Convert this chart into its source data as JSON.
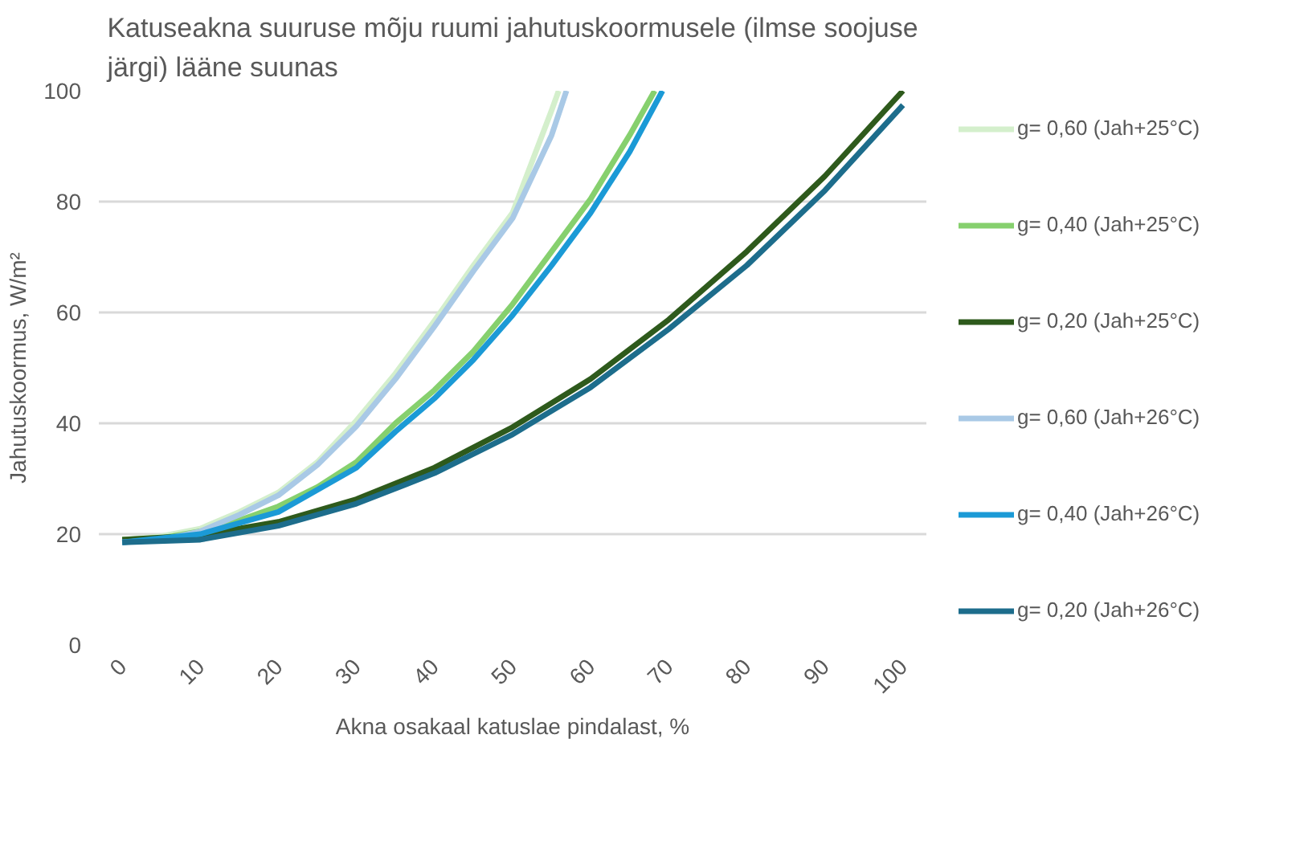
{
  "chart_data": {
    "type": "line",
    "title": "Katuseakna suuruse mõju ruumi jahutuskoormusele (ilmse soojuse järgi) lääne suunas",
    "xlabel": "Akna osakaal katuslae pindalast, %",
    "ylabel": "Jahutuskoormus, W/m²",
    "xlim": [
      -3,
      103
    ],
    "xticks": [
      0,
      10,
      20,
      30,
      40,
      50,
      60,
      70,
      80,
      90,
      100
    ],
    "ylim": [
      0,
      100
    ],
    "yticks": [
      0,
      20,
      40,
      60,
      80,
      100
    ],
    "grid": "y",
    "legend": "right",
    "line_style": "solid",
    "series": [
      {
        "name": "g= 0,60 (Jah+25°C)",
        "color": "#d4efcc",
        "x": [
          0,
          5,
          10,
          15,
          20,
          25,
          30,
          35,
          40,
          45,
          50,
          55,
          55.9
        ],
        "values": [
          19,
          19.6,
          21,
          24,
          27.5,
          33,
          40.5,
          49,
          58.5,
          68.5,
          78,
          96.5,
          100
        ]
      },
      {
        "name": "g= 0,40 (Jah+25°C)",
        "color": "#86d06e",
        "x": [
          0,
          5,
          10,
          15,
          20,
          25,
          30,
          35,
          40,
          45,
          50,
          55,
          60,
          65,
          68.2
        ],
        "values": [
          19,
          19.3,
          20.5,
          22.5,
          25,
          28.5,
          33,
          40,
          46,
          53,
          61.5,
          71,
          80.5,
          92,
          100
        ]
      },
      {
        "name": "g= 0,20 (Jah+25°C)",
        "color": "#2e5a1c",
        "x": [
          0,
          10,
          20,
          30,
          40,
          50,
          60,
          70,
          80,
          90,
          100
        ],
        "values": [
          19,
          19.8,
          22.2,
          26.3,
          32,
          39.3,
          48,
          58.7,
          71,
          84.6,
          100
        ]
      },
      {
        "name": "g= 0,60 (Jah+26°C)",
        "color": "#a9c9e6",
        "x": [
          0,
          5,
          10,
          15,
          20,
          25,
          30,
          35,
          40,
          45,
          50,
          55,
          56.9
        ],
        "values": [
          18.5,
          19,
          20.5,
          23.5,
          27,
          32.5,
          39.5,
          48,
          57.5,
          67.5,
          77,
          92,
          100
        ]
      },
      {
        "name": "g= 0,40 (Jah+26°C)",
        "color": "#1b9ad6",
        "x": [
          0,
          10,
          20,
          30,
          35,
          40,
          45,
          50,
          55,
          60,
          65,
          69.2
        ],
        "values": [
          18.5,
          20,
          24,
          32,
          38.5,
          44.5,
          51.5,
          59.5,
          68.5,
          78,
          89,
          100
        ]
      },
      {
        "name": "g= 0,20 (Jah+26°C)",
        "color": "#1d6d8c",
        "x": [
          0,
          10,
          20,
          30,
          40,
          50,
          60,
          70,
          80,
          90,
          100
        ],
        "values": [
          18.5,
          19,
          21.5,
          25.5,
          31,
          38,
          46.5,
          57,
          68.5,
          82,
          97.4
        ]
      }
    ]
  }
}
